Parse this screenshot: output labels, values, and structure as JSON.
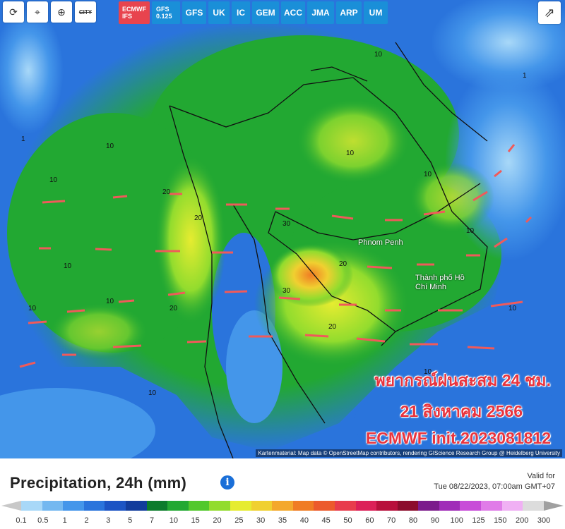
{
  "toolbar": {
    "tools": [
      {
        "name": "refresh-icon",
        "glyph": "⟳"
      },
      {
        "name": "location-pin-icon",
        "glyph": "⌖"
      },
      {
        "name": "zoom-icon",
        "glyph": "⊕"
      },
      {
        "name": "city-toggle",
        "glyph": "CITY"
      }
    ],
    "models": [
      "ECMWF IFS",
      "GFS 0.125",
      "GFS",
      "UK",
      "IC",
      "GEM",
      "ACC",
      "JMA",
      "ARP",
      "UM"
    ],
    "active_model": "ECMWF IFS",
    "share_glyph": "⇗"
  },
  "map": {
    "overlay_line1": "พยากรณ์ฝนสะสม 24 ชม.",
    "overlay_line2": "21 สิงหาคม 2566",
    "overlay_line3": "ECMWF init.2023081812",
    "attribution": "Kartenmaterial: Map data © OpenStreetMap contributors, rendering GIScience Research Group @ Heidelberg University",
    "cities": [
      "Phnom Penh",
      "Thành phố Hồ Chí Minh"
    ]
  },
  "legend": {
    "title": "Precipitation, 24h (mm)",
    "valid_label": "Valid for",
    "valid_time": "Tue 08/22/2023, 07:00am GMT+07",
    "ticks": [
      "0.1",
      "0.5",
      "1",
      "2",
      "3",
      "5",
      "7",
      "10",
      "15",
      "20",
      "25",
      "30",
      "35",
      "40",
      "45",
      "50",
      "60",
      "70",
      "80",
      "90",
      "100",
      "125",
      "150",
      "200",
      "300"
    ],
    "colors": [
      "#a8d8f8",
      "#74b8f0",
      "#4496ea",
      "#2a74dc",
      "#1c54c4",
      "#123c9c",
      "#0c7c2c",
      "#22a832",
      "#52c82c",
      "#92dc2e",
      "#e6ec30",
      "#f0d030",
      "#f4a82c",
      "#f07c24",
      "#ec5a2c",
      "#e83c4c",
      "#dc2058",
      "#b8103c",
      "#8c0c2c",
      "#7c1c8c",
      "#a02cb8",
      "#c84cd8",
      "#e07ce8",
      "#f0b0f4",
      "#dcdcdc"
    ]
  }
}
